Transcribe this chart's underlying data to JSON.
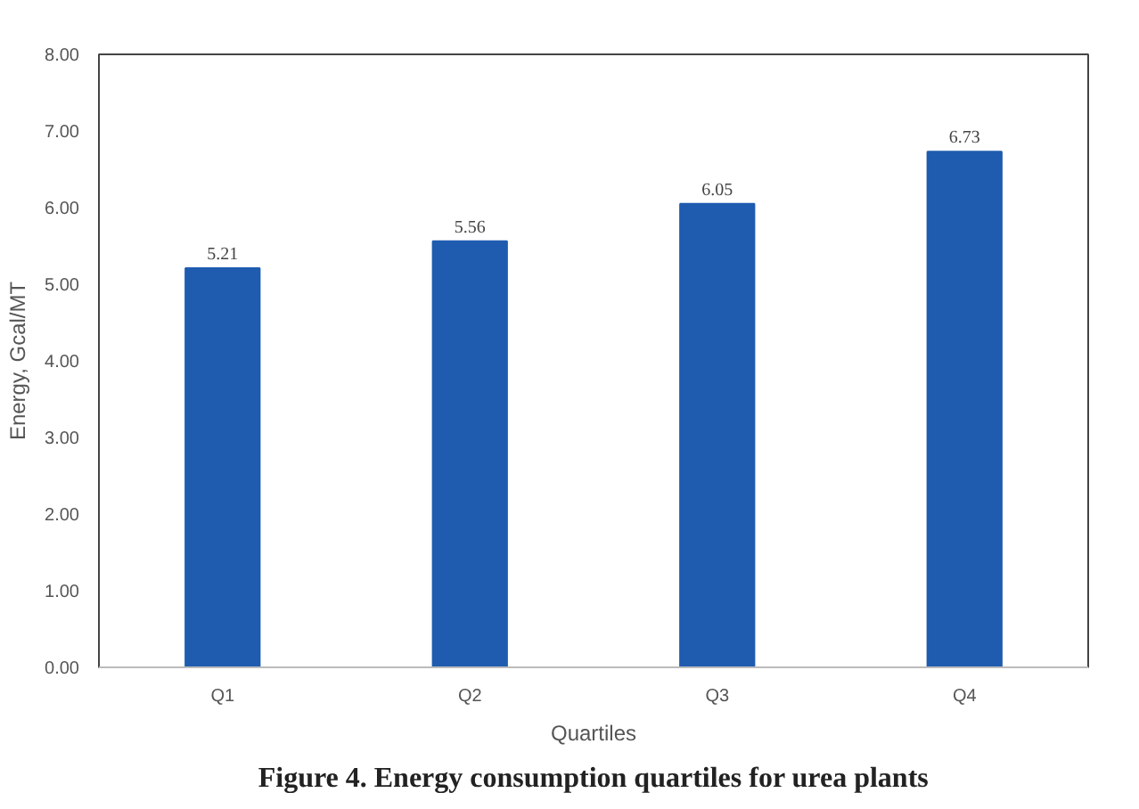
{
  "chart_data": {
    "type": "bar",
    "title": "Figure 4. Energy consumption quartiles for urea plants",
    "xlabel": "Quartiles",
    "ylabel": "Energy, Gcal/MT",
    "categories": [
      "Q1",
      "Q2",
      "Q3",
      "Q4"
    ],
    "values": [
      5.21,
      5.56,
      6.05,
      6.73
    ],
    "color": "#1f5cb0",
    "ylim": [
      0,
      8
    ],
    "yticks": [
      {
        "value": 0,
        "label": "0.00"
      },
      {
        "value": 1,
        "label": "1.00"
      },
      {
        "value": 2,
        "label": "2.00"
      },
      {
        "value": 3,
        "label": "3.00"
      },
      {
        "value": 4,
        "label": "4.00"
      },
      {
        "value": 5,
        "label": "5.00"
      },
      {
        "value": 6,
        "label": "6.00"
      },
      {
        "value": 7,
        "label": "7.00"
      },
      {
        "value": 8,
        "label": "8.00"
      }
    ],
    "data_labels": true,
    "grid": false
  }
}
